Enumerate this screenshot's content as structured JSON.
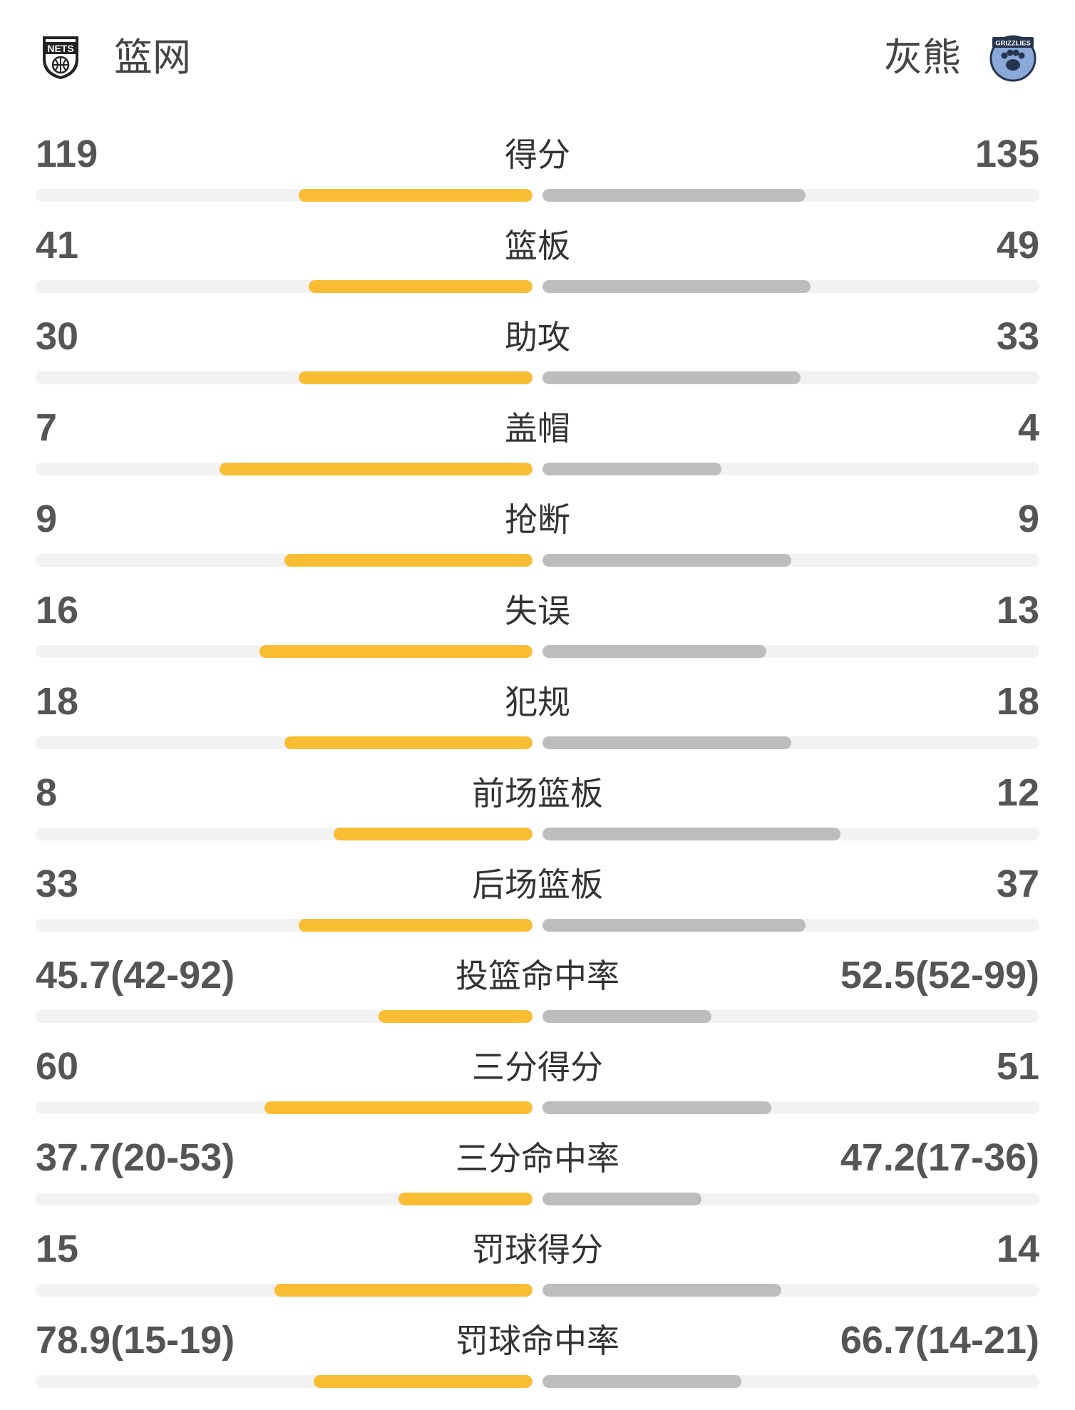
{
  "teams": {
    "home": {
      "name": "篮网",
      "logo_text": "NETS",
      "color": "#f9bd33"
    },
    "away": {
      "name": "灰熊",
      "logo_text": "GRIZZLIES",
      "color": "#bdbdbd"
    }
  },
  "stats": [
    {
      "label": "得分",
      "home": "119",
      "away": "135",
      "home_fill": 0.47,
      "away_fill": 0.53
    },
    {
      "label": "篮板",
      "home": "41",
      "away": "49",
      "home_fill": 0.45,
      "away_fill": 0.54
    },
    {
      "label": "助攻",
      "home": "30",
      "away": "33",
      "home_fill": 0.47,
      "away_fill": 0.52
    },
    {
      "label": "盖帽",
      "home": "7",
      "away": "4",
      "home_fill": 0.63,
      "away_fill": 0.36
    },
    {
      "label": "抢断",
      "home": "9",
      "away": "9",
      "home_fill": 0.5,
      "away_fill": 0.5
    },
    {
      "label": "失误",
      "home": "16",
      "away": "13",
      "home_fill": 0.55,
      "away_fill": 0.45
    },
    {
      "label": "犯规",
      "home": "18",
      "away": "18",
      "home_fill": 0.5,
      "away_fill": 0.5
    },
    {
      "label": "前场篮板",
      "home": "8",
      "away": "12",
      "home_fill": 0.4,
      "away_fill": 0.6
    },
    {
      "label": "后场篮板",
      "home": "33",
      "away": "37",
      "home_fill": 0.47,
      "away_fill": 0.53
    },
    {
      "label": "投篮命中率",
      "home": "45.7(42-92)",
      "away": "52.5(52-99)",
      "home_fill": 0.31,
      "away_fill": 0.34
    },
    {
      "label": "三分得分",
      "home": "60",
      "away": "51",
      "home_fill": 0.54,
      "away_fill": 0.46
    },
    {
      "label": "三分命中率",
      "home": "37.7(20-53)",
      "away": "47.2(17-36)",
      "home_fill": 0.27,
      "away_fill": 0.32
    },
    {
      "label": "罚球得分",
      "home": "15",
      "away": "14",
      "home_fill": 0.52,
      "away_fill": 0.48
    },
    {
      "label": "罚球命中率",
      "home": "78.9(15-19)",
      "away": "66.7(14-21)",
      "home_fill": 0.44,
      "away_fill": 0.4
    }
  ]
}
